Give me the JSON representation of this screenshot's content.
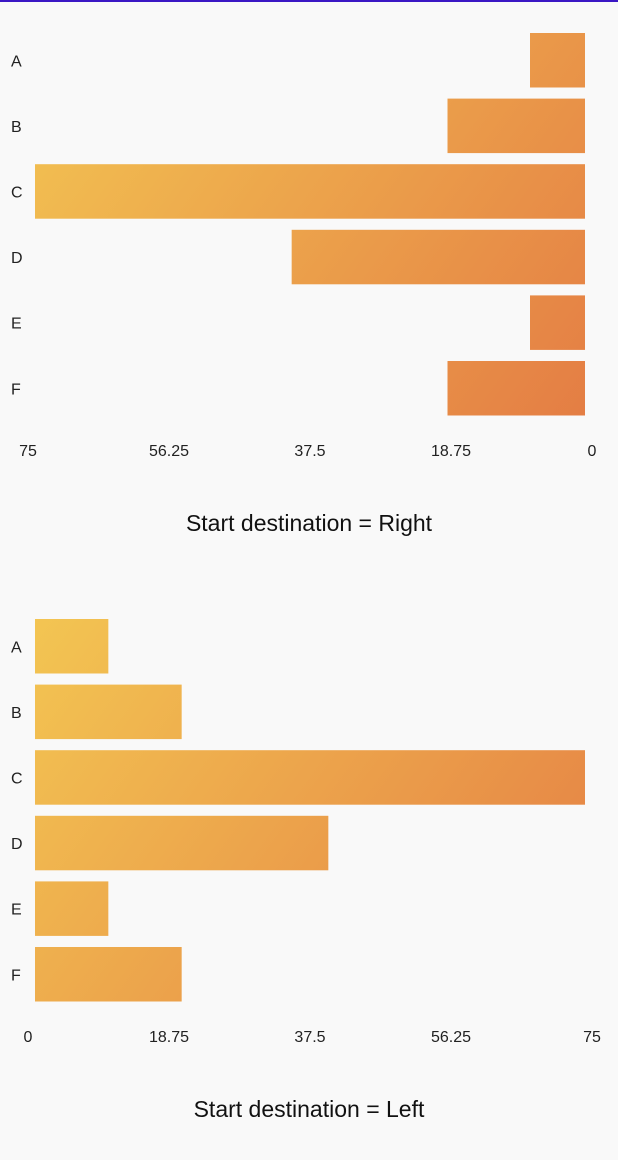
{
  "colors": {
    "gradient_start": "#f3c552",
    "gradient_end": "#e47d44",
    "top_border": "#3a17c4",
    "background": "#f9f9f9"
  },
  "chart_data": [
    {
      "type": "bar",
      "orientation": "horizontal",
      "start_destination": "right",
      "categories": [
        "A",
        "B",
        "C",
        "D",
        "E",
        "F"
      ],
      "values": [
        7.5,
        18.75,
        75,
        40,
        7.5,
        18.75
      ],
      "xlim": [
        0,
        75
      ],
      "x_ticks": [
        "75",
        "56.25",
        "37.5",
        "18.75",
        "0"
      ],
      "caption": "Start destination = Right",
      "grid": false,
      "legend": "none"
    },
    {
      "type": "bar",
      "orientation": "horizontal",
      "start_destination": "left",
      "categories": [
        "A",
        "B",
        "C",
        "D",
        "E",
        "F"
      ],
      "values": [
        10,
        20,
        75,
        40,
        10,
        20
      ],
      "xlim": [
        0,
        75
      ],
      "x_ticks": [
        "0",
        "18.75",
        "37.5",
        "56.25",
        "75"
      ],
      "caption": "Start destination = Left",
      "grid": false,
      "legend": "none"
    }
  ]
}
